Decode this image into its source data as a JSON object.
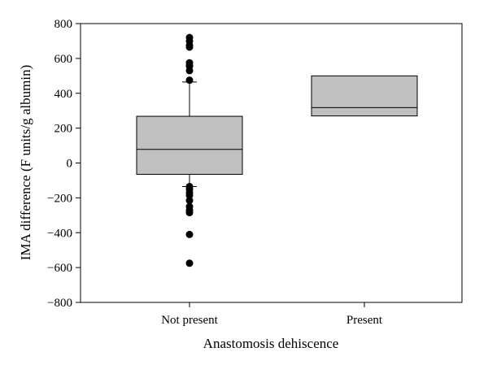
{
  "chart_data": {
    "type": "box",
    "xlabel": "Anastomosis dehiscence",
    "ylabel": "IMA difference (F units/g albumin)",
    "ylim": [
      -800,
      800
    ],
    "yticks": [
      -800,
      -600,
      -400,
      -200,
      0,
      200,
      400,
      600,
      800
    ],
    "yticks_text": [
      "−800",
      "−600",
      "−400",
      "−200",
      "0",
      "200",
      "400",
      "600",
      "800"
    ],
    "grid": false,
    "categories": [
      "Not present",
      "Present"
    ],
    "boxes": [
      {
        "category": "Not present",
        "q1": -65,
        "median": 78,
        "q3": 268,
        "whisker_low": -135,
        "whisker_high": 465,
        "outliers": [
          720,
          700,
          675,
          665,
          575,
          560,
          555,
          530,
          475,
          -135,
          -150,
          -170,
          -185,
          -215,
          -250,
          -270,
          -285,
          -410,
          -575
        ]
      },
      {
        "category": "Present",
        "q1": 270,
        "median": 318,
        "q3": 500,
        "whisker_low": null,
        "whisker_high": null,
        "outliers": []
      }
    ],
    "colors": {
      "box_fill": "#c0c0c0",
      "stroke": "#000000",
      "outlier": "#000000"
    }
  }
}
